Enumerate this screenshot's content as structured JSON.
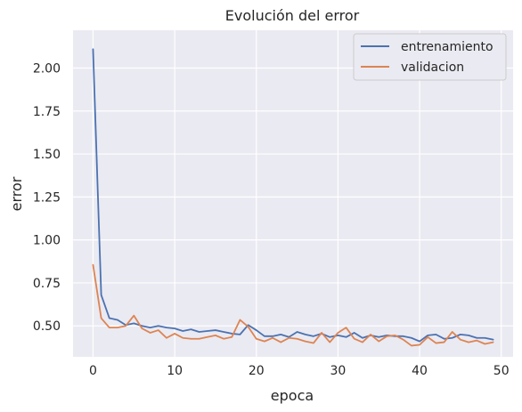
{
  "chart_data": {
    "type": "line",
    "title": "Evolución del error",
    "xlabel": "epoca",
    "ylabel": "error",
    "xlim": [
      -2.45,
      51.45
    ],
    "ylim": [
      0.32,
      2.22
    ],
    "xticks": [
      0,
      10,
      20,
      30,
      40,
      50
    ],
    "yticks": [
      0.5,
      0.75,
      1.0,
      1.25,
      1.5,
      1.75,
      2.0
    ],
    "xtick_labels": [
      "0",
      "10",
      "20",
      "30",
      "40",
      "50"
    ],
    "ytick_labels": [
      "0.50",
      "0.75",
      "1.00",
      "1.25",
      "1.50",
      "1.75",
      "2.00"
    ],
    "grid": true,
    "legend_position": "top-right",
    "x": [
      0,
      1,
      2,
      3,
      4,
      5,
      6,
      7,
      8,
      9,
      10,
      11,
      12,
      13,
      14,
      15,
      16,
      17,
      18,
      19,
      20,
      21,
      22,
      23,
      24,
      25,
      26,
      27,
      28,
      29,
      30,
      31,
      32,
      33,
      34,
      35,
      36,
      37,
      38,
      39,
      40,
      41,
      42,
      43,
      44,
      45,
      46,
      47,
      48,
      49
    ],
    "series": [
      {
        "name": "entrenamiento",
        "color": "#4c72b0",
        "values": [
          2.11,
          0.68,
          0.545,
          0.535,
          0.505,
          0.515,
          0.5,
          0.49,
          0.5,
          0.49,
          0.485,
          0.47,
          0.48,
          0.465,
          0.47,
          0.475,
          0.465,
          0.455,
          0.45,
          0.505,
          0.475,
          0.44,
          0.44,
          0.45,
          0.435,
          0.465,
          0.45,
          0.44,
          0.455,
          0.435,
          0.445,
          0.435,
          0.46,
          0.43,
          0.445,
          0.435,
          0.445,
          0.44,
          0.44,
          0.43,
          0.41,
          0.445,
          0.45,
          0.425,
          0.43,
          0.45,
          0.445,
          0.43,
          0.43,
          0.42
        ]
      },
      {
        "name": "validacion",
        "color": "#dd8452",
        "values": [
          0.855,
          0.545,
          0.49,
          0.49,
          0.5,
          0.56,
          0.485,
          0.46,
          0.475,
          0.43,
          0.455,
          0.43,
          0.425,
          0.425,
          0.435,
          0.445,
          0.425,
          0.435,
          0.535,
          0.495,
          0.425,
          0.41,
          0.43,
          0.405,
          0.43,
          0.425,
          0.41,
          0.4,
          0.46,
          0.405,
          0.46,
          0.49,
          0.425,
          0.405,
          0.45,
          0.41,
          0.44,
          0.445,
          0.42,
          0.385,
          0.39,
          0.435,
          0.4,
          0.405,
          0.465,
          0.42,
          0.405,
          0.415,
          0.395,
          0.405
        ]
      }
    ]
  },
  "style": {
    "plot_background": "#eaeaf2",
    "grid_color": "#ffffff",
    "text_color": "#262626"
  }
}
